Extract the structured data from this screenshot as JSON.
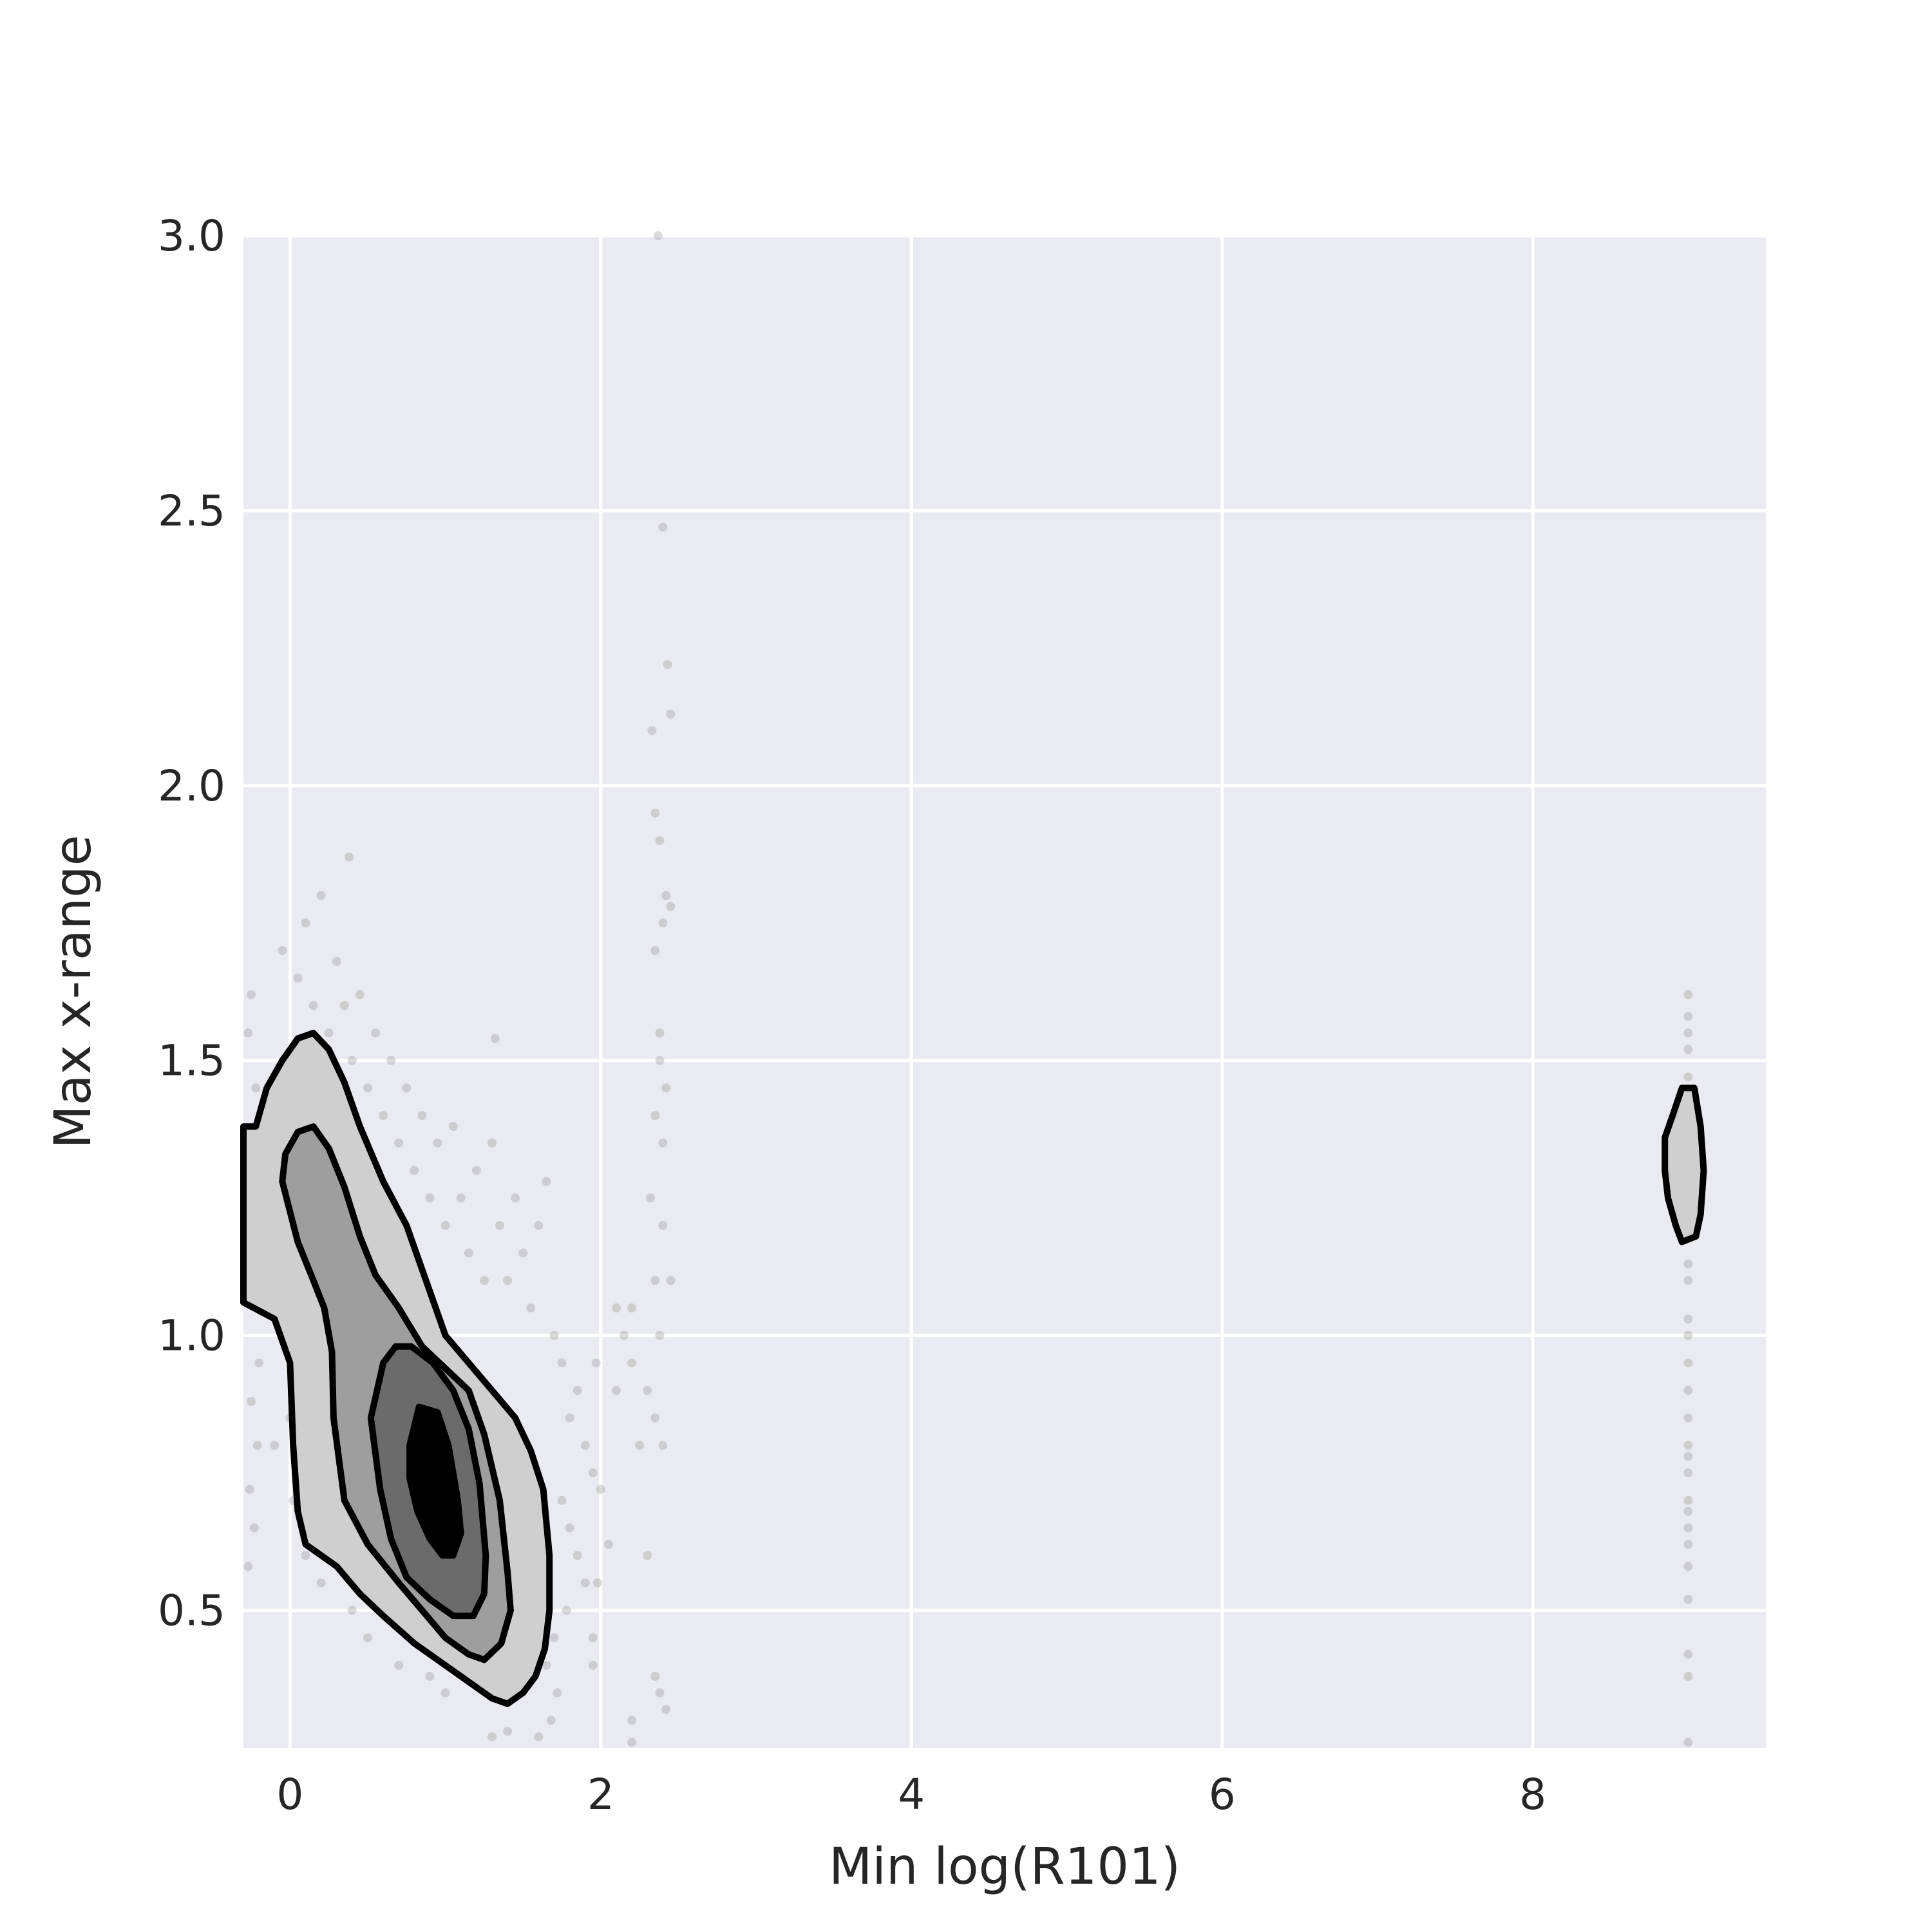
{
  "chart_data": {
    "type": "scatter",
    "title": "",
    "xlabel": "Min log(R101)",
    "ylabel": "Max x-range",
    "xlim": [
      -0.3,
      9.5
    ],
    "ylim": [
      0.25,
      3.0
    ],
    "x_ticks": [
      0,
      2,
      4,
      6,
      8
    ],
    "y_ticks": [
      0.5,
      1.0,
      1.5,
      2.0,
      2.5,
      3.0
    ],
    "x_tick_labels": [
      "0",
      "2",
      "4",
      "6",
      "8"
    ],
    "y_tick_labels": [
      "0.5",
      "1.0",
      "1.5",
      "2.0",
      "2.5",
      "3.0"
    ],
    "grid": true,
    "colors": {
      "background": "#EAEAF2",
      "grid": "#FFFFFF",
      "points": "#7f7f7f",
      "contour_stroke": "#000000",
      "levels": [
        "#CFCFCF",
        "#9E9E9E",
        "#6B6B6B",
        "#000000"
      ]
    },
    "scatter": [
      [
        -0.25,
        1.62
      ],
      [
        -0.27,
        1.55
      ],
      [
        -0.22,
        1.45
      ],
      [
        -0.26,
        1.3
      ],
      [
        -0.24,
        1.1
      ],
      [
        -0.2,
        0.95
      ],
      [
        -0.25,
        0.88
      ],
      [
        -0.21,
        0.8
      ],
      [
        -0.26,
        0.72
      ],
      [
        -0.23,
        0.65
      ],
      [
        -0.27,
        0.58
      ],
      [
        -0.22,
        1.2
      ],
      [
        -0.05,
        1.7
      ],
      [
        0.05,
        1.65
      ],
      [
        0.1,
        1.75
      ],
      [
        0.15,
        1.6
      ],
      [
        0.2,
        1.8
      ],
      [
        0.25,
        1.55
      ],
      [
        0.3,
        1.68
      ],
      [
        0.35,
        1.6
      ],
      [
        0.38,
        1.87
      ],
      [
        0.4,
        1.5
      ],
      [
        0.45,
        1.62
      ],
      [
        0.5,
        1.45
      ],
      [
        0.55,
        1.55
      ],
      [
        0.6,
        1.4
      ],
      [
        0.65,
        1.5
      ],
      [
        0.7,
        1.35
      ],
      [
        0.75,
        1.45
      ],
      [
        0.8,
        1.3
      ],
      [
        0.85,
        1.4
      ],
      [
        0.9,
        1.25
      ],
      [
        0.95,
        1.35
      ],
      [
        1.0,
        1.2
      ],
      [
        1.05,
        1.38
      ],
      [
        1.1,
        1.25
      ],
      [
        1.15,
        1.15
      ],
      [
        1.2,
        1.3
      ],
      [
        1.25,
        1.1
      ],
      [
        1.3,
        1.35
      ],
      [
        1.32,
        1.54
      ],
      [
        1.35,
        1.2
      ],
      [
        1.4,
        1.1
      ],
      [
        1.45,
        1.25
      ],
      [
        1.5,
        1.15
      ],
      [
        1.55,
        1.05
      ],
      [
        1.6,
        1.2
      ],
      [
        1.65,
        1.28
      ],
      [
        1.7,
        1.0
      ],
      [
        1.75,
        0.95
      ],
      [
        1.8,
        0.85
      ],
      [
        1.85,
        0.9
      ],
      [
        1.9,
        0.8
      ],
      [
        1.95,
        0.75
      ],
      [
        1.75,
        0.7
      ],
      [
        1.8,
        0.65
      ],
      [
        1.85,
        0.6
      ],
      [
        1.9,
        0.55
      ],
      [
        1.78,
        0.5
      ],
      [
        1.7,
        0.45
      ],
      [
        1.65,
        0.4
      ],
      [
        1.72,
        0.35
      ],
      [
        1.68,
        0.3
      ],
      [
        1.6,
        0.27
      ],
      [
        1.4,
        0.28
      ],
      [
        1.3,
        0.27
      ],
      [
        1.0,
        0.35
      ],
      [
        0.9,
        0.38
      ],
      [
        0.7,
        0.4
      ],
      [
        0.5,
        0.45
      ],
      [
        0.4,
        0.5
      ],
      [
        0.2,
        0.55
      ],
      [
        0.1,
        0.6
      ],
      [
        0.05,
        0.75
      ],
      [
        0.0,
        0.85
      ],
      [
        -0.1,
        0.8
      ],
      [
        0.02,
        0.7
      ],
      [
        0.12,
        0.65
      ],
      [
        2.0,
        0.72
      ],
      [
        2.05,
        0.62
      ],
      [
        1.97,
        0.95
      ],
      [
        1.98,
        0.55
      ],
      [
        1.95,
        0.45
      ],
      [
        1.95,
        0.4
      ],
      [
        2.1,
        1.05
      ],
      [
        2.15,
        1.0
      ],
      [
        2.2,
        0.95
      ],
      [
        2.25,
        0.8
      ],
      [
        2.2,
        1.05
      ],
      [
        2.1,
        0.9
      ],
      [
        2.2,
        0.3
      ],
      [
        2.2,
        0.26
      ],
      [
        2.32,
        1.25
      ],
      [
        2.35,
        1.1
      ],
      [
        2.38,
        1.0
      ],
      [
        2.4,
        1.2
      ],
      [
        2.45,
        1.1
      ],
      [
        2.3,
        0.9
      ],
      [
        2.35,
        0.85
      ],
      [
        2.4,
        0.8
      ],
      [
        2.3,
        0.6
      ],
      [
        2.35,
        0.38
      ],
      [
        2.38,
        0.35
      ],
      [
        2.42,
        0.32
      ],
      [
        2.35,
        1.4
      ],
      [
        2.38,
        1.5
      ],
      [
        2.4,
        1.35
      ],
      [
        2.42,
        1.45
      ],
      [
        2.38,
        1.55
      ],
      [
        2.35,
        1.7
      ],
      [
        2.4,
        1.75
      ],
      [
        2.45,
        1.78
      ],
      [
        2.42,
        1.8
      ],
      [
        2.35,
        1.95
      ],
      [
        2.38,
        1.9
      ],
      [
        2.33,
        2.1
      ],
      [
        2.45,
        2.13
      ],
      [
        2.43,
        2.22
      ],
      [
        2.4,
        2.47
      ],
      [
        2.37,
        3.0
      ],
      [
        9.0,
        1.62
      ],
      [
        9.0,
        1.58
      ],
      [
        9.0,
        1.55
      ],
      [
        9.0,
        1.52
      ],
      [
        9.0,
        1.47
      ],
      [
        9.0,
        1.4
      ],
      [
        9.0,
        1.3
      ],
      [
        9.0,
        1.2
      ],
      [
        9.0,
        1.13
      ],
      [
        9.0,
        1.1
      ],
      [
        9.0,
        1.03
      ],
      [
        9.0,
        1.0
      ],
      [
        9.0,
        0.95
      ],
      [
        9.0,
        0.9
      ],
      [
        9.0,
        0.85
      ],
      [
        9.0,
        0.8
      ],
      [
        9.0,
        0.78
      ],
      [
        9.0,
        0.75
      ],
      [
        9.0,
        0.7
      ],
      [
        9.0,
        0.68
      ],
      [
        9.0,
        0.65
      ],
      [
        9.0,
        0.62
      ],
      [
        9.0,
        0.58
      ],
      [
        9.0,
        0.52
      ],
      [
        9.0,
        0.42
      ],
      [
        9.0,
        0.38
      ],
      [
        9.0,
        0.26
      ]
    ],
    "contour_levels": [
      {
        "level": 1,
        "polygon": [
          [
            -0.3,
            1.38
          ],
          [
            -0.22,
            1.38
          ],
          [
            -0.15,
            1.45
          ],
          [
            -0.05,
            1.5
          ],
          [
            0.05,
            1.54
          ],
          [
            0.15,
            1.55
          ],
          [
            0.25,
            1.52
          ],
          [
            0.35,
            1.46
          ],
          [
            0.45,
            1.38
          ],
          [
            0.6,
            1.28
          ],
          [
            0.75,
            1.2
          ],
          [
            0.9,
            1.08
          ],
          [
            1.0,
            1.0
          ],
          [
            1.15,
            0.95
          ],
          [
            1.3,
            0.9
          ],
          [
            1.45,
            0.85
          ],
          [
            1.55,
            0.79
          ],
          [
            1.63,
            0.72
          ],
          [
            1.67,
            0.6
          ],
          [
            1.67,
            0.5
          ],
          [
            1.64,
            0.43
          ],
          [
            1.58,
            0.38
          ],
          [
            1.5,
            0.35
          ],
          [
            1.4,
            0.33
          ],
          [
            1.3,
            0.34
          ],
          [
            1.2,
            0.36
          ],
          [
            1.0,
            0.4
          ],
          [
            0.8,
            0.44
          ],
          [
            0.6,
            0.49
          ],
          [
            0.45,
            0.53
          ],
          [
            0.3,
            0.58
          ],
          [
            0.1,
            0.62
          ],
          [
            0.05,
            0.68
          ],
          [
            0.02,
            0.8
          ],
          [
            0.0,
            0.95
          ],
          [
            -0.1,
            1.03
          ],
          [
            -0.3,
            1.06
          ]
        ]
      },
      {
        "level": 2,
        "polygon": [
          [
            -0.05,
            1.28
          ],
          [
            -0.03,
            1.33
          ],
          [
            0.05,
            1.37
          ],
          [
            0.15,
            1.38
          ],
          [
            0.25,
            1.34
          ],
          [
            0.35,
            1.27
          ],
          [
            0.45,
            1.18
          ],
          [
            0.55,
            1.11
          ],
          [
            0.7,
            1.05
          ],
          [
            0.85,
            0.98
          ],
          [
            1.0,
            0.94
          ],
          [
            1.15,
            0.9
          ],
          [
            1.25,
            0.82
          ],
          [
            1.35,
            0.7
          ],
          [
            1.4,
            0.57
          ],
          [
            1.42,
            0.5
          ],
          [
            1.36,
            0.44
          ],
          [
            1.25,
            0.41
          ],
          [
            1.15,
            0.42
          ],
          [
            1.0,
            0.45
          ],
          [
            0.85,
            0.5
          ],
          [
            0.7,
            0.55
          ],
          [
            0.5,
            0.62
          ],
          [
            0.35,
            0.7
          ],
          [
            0.28,
            0.85
          ],
          [
            0.27,
            0.97
          ],
          [
            0.22,
            1.05
          ],
          [
            0.15,
            1.1
          ],
          [
            0.05,
            1.17
          ]
        ]
      },
      {
        "level": 3,
        "polygon": [
          [
            0.6,
            0.95
          ],
          [
            0.68,
            0.98
          ],
          [
            0.78,
            0.98
          ],
          [
            0.92,
            0.95
          ],
          [
            1.05,
            0.9
          ],
          [
            1.15,
            0.83
          ],
          [
            1.22,
            0.73
          ],
          [
            1.26,
            0.6
          ],
          [
            1.25,
            0.53
          ],
          [
            1.18,
            0.49
          ],
          [
            1.05,
            0.49
          ],
          [
            0.9,
            0.52
          ],
          [
            0.75,
            0.56
          ],
          [
            0.65,
            0.63
          ],
          [
            0.58,
            0.72
          ],
          [
            0.52,
            0.85
          ]
        ]
      },
      {
        "level": 4,
        "polygon": [
          [
            0.77,
            0.8
          ],
          [
            0.83,
            0.87
          ],
          [
            0.95,
            0.86
          ],
          [
            1.02,
            0.8
          ],
          [
            1.08,
            0.7
          ],
          [
            1.1,
            0.64
          ],
          [
            1.05,
            0.6
          ],
          [
            0.98,
            0.6
          ],
          [
            0.9,
            0.63
          ],
          [
            0.82,
            0.68
          ],
          [
            0.77,
            0.74
          ]
        ]
      },
      {
        "level": 1,
        "polygon": [
          [
            8.85,
            1.36
          ],
          [
            8.9,
            1.4
          ],
          [
            8.96,
            1.45
          ],
          [
            9.04,
            1.45
          ],
          [
            9.08,
            1.38
          ],
          [
            9.1,
            1.3
          ],
          [
            9.08,
            1.22
          ],
          [
            9.05,
            1.18
          ],
          [
            8.96,
            1.17
          ],
          [
            8.92,
            1.2
          ],
          [
            8.87,
            1.25
          ],
          [
            8.85,
            1.3
          ]
        ]
      }
    ],
    "annotations": []
  }
}
